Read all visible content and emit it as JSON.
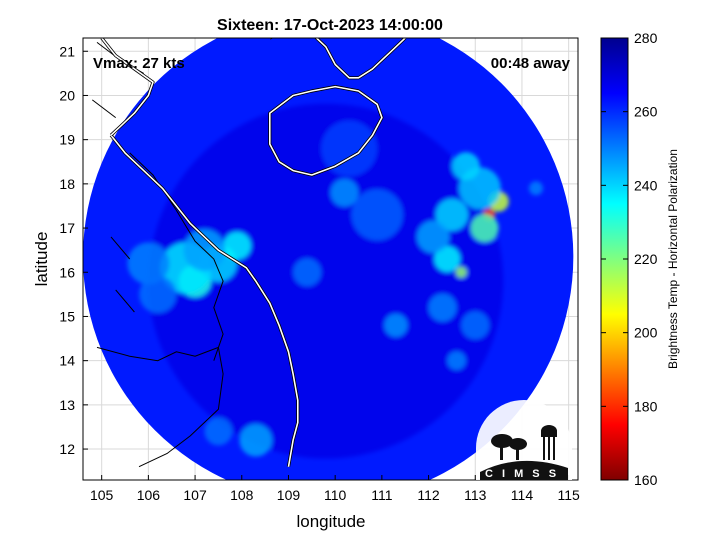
{
  "chart_data": {
    "type": "heatmap",
    "title": "Sixteen: 17-Oct-2023 14:00:00",
    "xlabel": "longitude",
    "ylabel": "latitude",
    "xlim": [
      104.6,
      115.2
    ],
    "ylim": [
      11.3,
      21.3
    ],
    "x_ticks": [
      105,
      106,
      107,
      108,
      109,
      110,
      111,
      112,
      113,
      114,
      115
    ],
    "y_ticks": [
      12,
      13,
      14,
      15,
      16,
      17,
      18,
      19,
      20,
      21
    ],
    "grid": true,
    "annotations": {
      "left": "Vmax: 27 kts",
      "right": "00:48 away"
    },
    "swath": {
      "center_lon": 109.85,
      "center_lat": 16.35,
      "radius_deg": 5.25
    },
    "colorbar": {
      "label": "Brightness Temp - Horizontal Polarization",
      "range": [
        160,
        280
      ],
      "ticks": [
        160,
        180,
        200,
        220,
        240,
        260,
        280
      ],
      "colors": [
        "#7f0000",
        "#ff0000",
        "#ff8000",
        "#ffff00",
        "#80ff80",
        "#00ffff",
        "#0080ff",
        "#0000ff",
        "#00008f"
      ]
    },
    "background_value": 262,
    "features": [
      {
        "lon": 109.8,
        "lat": 15.8,
        "value": 268,
        "r": 3.8
      },
      {
        "lon": 107.0,
        "lat": 15.8,
        "value": 232,
        "r": 0.35
      },
      {
        "lon": 106.8,
        "lat": 16.1,
        "value": 238,
        "r": 0.55
      },
      {
        "lon": 107.5,
        "lat": 16.2,
        "value": 240,
        "r": 0.4
      },
      {
        "lon": 107.9,
        "lat": 16.6,
        "value": 236,
        "r": 0.3
      },
      {
        "lon": 107.2,
        "lat": 16.5,
        "value": 246,
        "r": 0.45
      },
      {
        "lon": 106.0,
        "lat": 16.2,
        "value": 250,
        "r": 0.45
      },
      {
        "lon": 106.2,
        "lat": 15.5,
        "value": 252,
        "r": 0.4
      },
      {
        "lon": 113.3,
        "lat": 17.3,
        "value": 178,
        "r": 0.13
      },
      {
        "lon": 113.5,
        "lat": 17.6,
        "value": 212,
        "r": 0.22
      },
      {
        "lon": 113.2,
        "lat": 17.0,
        "value": 226,
        "r": 0.3
      },
      {
        "lon": 113.1,
        "lat": 17.9,
        "value": 242,
        "r": 0.45
      },
      {
        "lon": 112.4,
        "lat": 16.3,
        "value": 236,
        "r": 0.28
      },
      {
        "lon": 112.7,
        "lat": 16.0,
        "value": 218,
        "r": 0.12
      },
      {
        "lon": 112.5,
        "lat": 17.3,
        "value": 240,
        "r": 0.35
      },
      {
        "lon": 112.8,
        "lat": 18.4,
        "value": 240,
        "r": 0.3
      },
      {
        "lon": 112.1,
        "lat": 16.8,
        "value": 246,
        "r": 0.35
      },
      {
        "lon": 109.4,
        "lat": 16.0,
        "value": 252,
        "r": 0.3
      },
      {
        "lon": 110.2,
        "lat": 17.8,
        "value": 248,
        "r": 0.3
      },
      {
        "lon": 110.9,
        "lat": 17.3,
        "value": 254,
        "r": 0.55
      },
      {
        "lon": 112.3,
        "lat": 15.2,
        "value": 250,
        "r": 0.3
      },
      {
        "lon": 113.0,
        "lat": 14.8,
        "value": 252,
        "r": 0.3
      },
      {
        "lon": 111.3,
        "lat": 14.8,
        "value": 248,
        "r": 0.25
      },
      {
        "lon": 108.3,
        "lat": 12.2,
        "value": 246,
        "r": 0.35
      },
      {
        "lon": 107.5,
        "lat": 12.4,
        "value": 252,
        "r": 0.3
      },
      {
        "lon": 110.3,
        "lat": 18.8,
        "value": 258,
        "r": 0.6
      },
      {
        "lon": 114.3,
        "lat": 17.9,
        "value": 250,
        "r": 0.15
      },
      {
        "lon": 112.6,
        "lat": 14.0,
        "value": 250,
        "r": 0.2
      }
    ],
    "coastlines": [
      [
        [
          105.2,
          19.1
        ],
        [
          105.5,
          18.7
        ],
        [
          105.9,
          18.3
        ],
        [
          106.3,
          17.9
        ],
        [
          106.6,
          17.5
        ],
        [
          106.9,
          17.1
        ],
        [
          107.2,
          16.8
        ],
        [
          107.5,
          16.5
        ],
        [
          107.8,
          16.3
        ],
        [
          108.1,
          16.1
        ],
        [
          108.3,
          15.8
        ],
        [
          108.6,
          15.3
        ],
        [
          108.8,
          14.8
        ],
        [
          109.0,
          14.2
        ],
        [
          109.1,
          13.7
        ],
        [
          109.2,
          13.1
        ],
        [
          109.2,
          12.6
        ],
        [
          109.1,
          12.2
        ],
        [
          109.0,
          11.6
        ]
      ],
      [
        [
          105.0,
          21.3
        ],
        [
          105.3,
          20.9
        ],
        [
          105.7,
          20.6
        ],
        [
          106.1,
          20.3
        ],
        [
          106.0,
          20.0
        ],
        [
          105.7,
          19.6
        ],
        [
          105.4,
          19.3
        ],
        [
          105.2,
          19.1
        ]
      ],
      [
        [
          108.6,
          19.1
        ],
        [
          108.6,
          19.6
        ],
        [
          109.1,
          20.0
        ],
        [
          109.5,
          20.1
        ],
        [
          110.0,
          20.2
        ],
        [
          110.5,
          20.1
        ],
        [
          110.9,
          19.8
        ],
        [
          111.0,
          19.5
        ],
        [
          110.8,
          19.1
        ],
        [
          110.5,
          18.7
        ],
        [
          110.0,
          18.4
        ],
        [
          109.5,
          18.2
        ],
        [
          109.1,
          18.3
        ],
        [
          108.8,
          18.5
        ],
        [
          108.6,
          18.9
        ],
        [
          108.6,
          19.1
        ]
      ],
      [
        [
          108.6,
          21.3
        ],
        [
          108.8,
          21.4
        ],
        [
          109.5,
          21.4
        ],
        [
          109.8,
          21.1
        ],
        [
          110.0,
          20.7
        ],
        [
          110.3,
          20.4
        ],
        [
          110.5,
          20.4
        ],
        [
          110.8,
          20.6
        ],
        [
          111.2,
          21.0
        ],
        [
          111.5,
          21.3
        ]
      ]
    ],
    "borders": [
      [
        [
          105.6,
          18.7
        ],
        [
          106.1,
          18.2
        ],
        [
          106.6,
          17.4
        ],
        [
          107.0,
          16.7
        ],
        [
          107.4,
          16.3
        ],
        [
          107.6,
          15.8
        ],
        [
          107.4,
          15.2
        ],
        [
          107.6,
          14.6
        ],
        [
          107.4,
          14.0
        ]
      ],
      [
        [
          104.9,
          14.3
        ],
        [
          105.6,
          14.1
        ],
        [
          106.2,
          14.0
        ],
        [
          106.6,
          14.2
        ],
        [
          107.0,
          14.1
        ],
        [
          107.5,
          14.3
        ]
      ],
      [
        [
          107.5,
          14.3
        ],
        [
          107.6,
          13.7
        ],
        [
          107.5,
          12.9
        ],
        [
          106.9,
          12.3
        ],
        [
          106.4,
          11.9
        ],
        [
          105.8,
          11.6
        ]
      ],
      [
        [
          104.9,
          21.2
        ],
        [
          105.4,
          20.8
        ],
        [
          105.9,
          20.5
        ]
      ],
      [
        [
          104.8,
          19.9
        ],
        [
          105.3,
          19.5
        ]
      ],
      [
        [
          105.2,
          16.8
        ],
        [
          105.6,
          16.3
        ]
      ],
      [
        [
          105.3,
          15.6
        ],
        [
          105.7,
          15.1
        ]
      ]
    ]
  },
  "logo": {
    "text": "CIMSS"
  }
}
